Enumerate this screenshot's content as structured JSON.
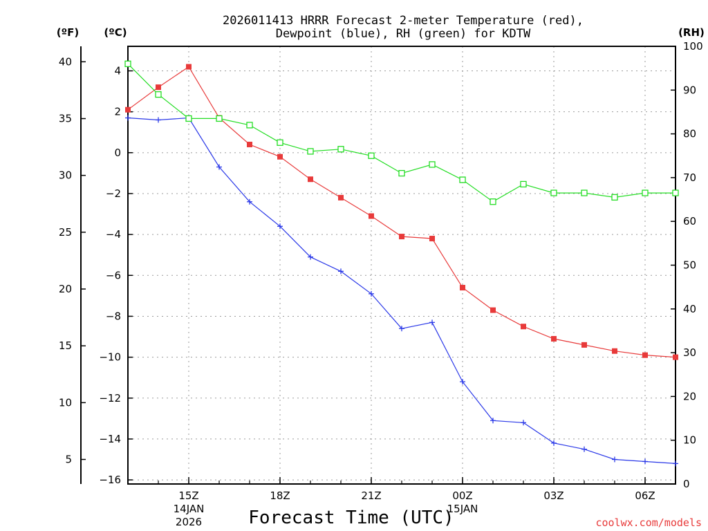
{
  "chart_data": {
    "type": "line",
    "title_line1": "2026011413 HRRR Forecast 2-meter Temperature (red),",
    "title_line2": "Dewpoint (blue), RH (green) for KDTW",
    "units": {
      "fahrenheit": "(ºF)",
      "celsius": "(ºC)",
      "rh": "(RH)"
    },
    "xlabel": "Forecast Time (UTC)",
    "credit": "coolwx.com/models",
    "x": [
      13,
      14,
      15,
      16,
      17,
      18,
      19,
      20,
      21,
      22,
      23,
      24,
      25,
      26,
      27,
      28,
      29,
      30,
      31
    ],
    "xlim": [
      13,
      31
    ],
    "x_ticks": [
      {
        "x": 15,
        "label": "15Z",
        "sub1": "14JAN",
        "sub2": "2026"
      },
      {
        "x": 18,
        "label": "18Z",
        "sub1": "",
        "sub2": ""
      },
      {
        "x": 21,
        "label": "21Z",
        "sub1": "",
        "sub2": ""
      },
      {
        "x": 24,
        "label": "00Z",
        "sub1": "15JAN",
        "sub2": ""
      },
      {
        "x": 27,
        "label": "03Z",
        "sub1": "",
        "sub2": ""
      },
      {
        "x": 30,
        "label": "06Z",
        "sub1": "",
        "sub2": ""
      }
    ],
    "y_celsius": {
      "ylim": [
        -16.2,
        5.2
      ],
      "ticks": [
        4,
        2,
        0,
        -2,
        -4,
        -6,
        -8,
        -10,
        -12,
        -14,
        -16
      ],
      "tick_labels": [
        "4",
        "2",
        "0",
        "−2",
        "−4",
        "−6",
        "−8",
        "−10",
        "−12",
        "−14",
        "−16"
      ]
    },
    "y_fahrenheit": {
      "ticks": [
        40,
        35,
        30,
        25,
        20,
        15,
        10,
        5
      ],
      "tick_labels": [
        "40",
        "35",
        "30",
        "25",
        "20",
        "15",
        "10",
        "5"
      ]
    },
    "y_rh": {
      "ylim": [
        0,
        100
      ],
      "ticks": [
        100,
        90,
        80,
        70,
        60,
        50,
        40,
        30,
        20,
        10,
        0
      ],
      "tick_labels": [
        "100",
        "90",
        "80",
        "70",
        "60",
        "50",
        "40",
        "30",
        "20",
        "10",
        "0"
      ]
    },
    "series": [
      {
        "name": "Temperature",
        "axis": "celsius",
        "color": "#e83a3a",
        "marker": "filled-square",
        "values": [
          2.1,
          3.2,
          4.2,
          1.7,
          0.4,
          -0.2,
          -1.3,
          -2.2,
          -3.1,
          -4.1,
          -4.2,
          -6.6,
          -7.7,
          -8.5,
          -9.1,
          -9.4,
          -9.7,
          -9.9,
          -10.0
        ]
      },
      {
        "name": "Dewpoint",
        "axis": "celsius",
        "color": "#2a38e8",
        "marker": "plus",
        "values": [
          1.7,
          1.6,
          1.7,
          -0.7,
          -2.4,
          -3.6,
          -5.1,
          -5.8,
          -6.9,
          -8.6,
          -8.3,
          -11.2,
          -13.1,
          -13.2,
          -14.2,
          -14.5,
          -15.0,
          -15.1,
          -15.2
        ]
      },
      {
        "name": "RH",
        "axis": "rh",
        "color": "#22dd22",
        "marker": "open-square",
        "values": [
          96,
          89,
          83.5,
          83.5,
          82,
          78,
          76,
          76.5,
          75,
          71,
          73,
          69.5,
          64.5,
          68.5,
          66.5,
          66.5,
          65.5,
          66.5,
          66.5
        ]
      }
    ]
  }
}
